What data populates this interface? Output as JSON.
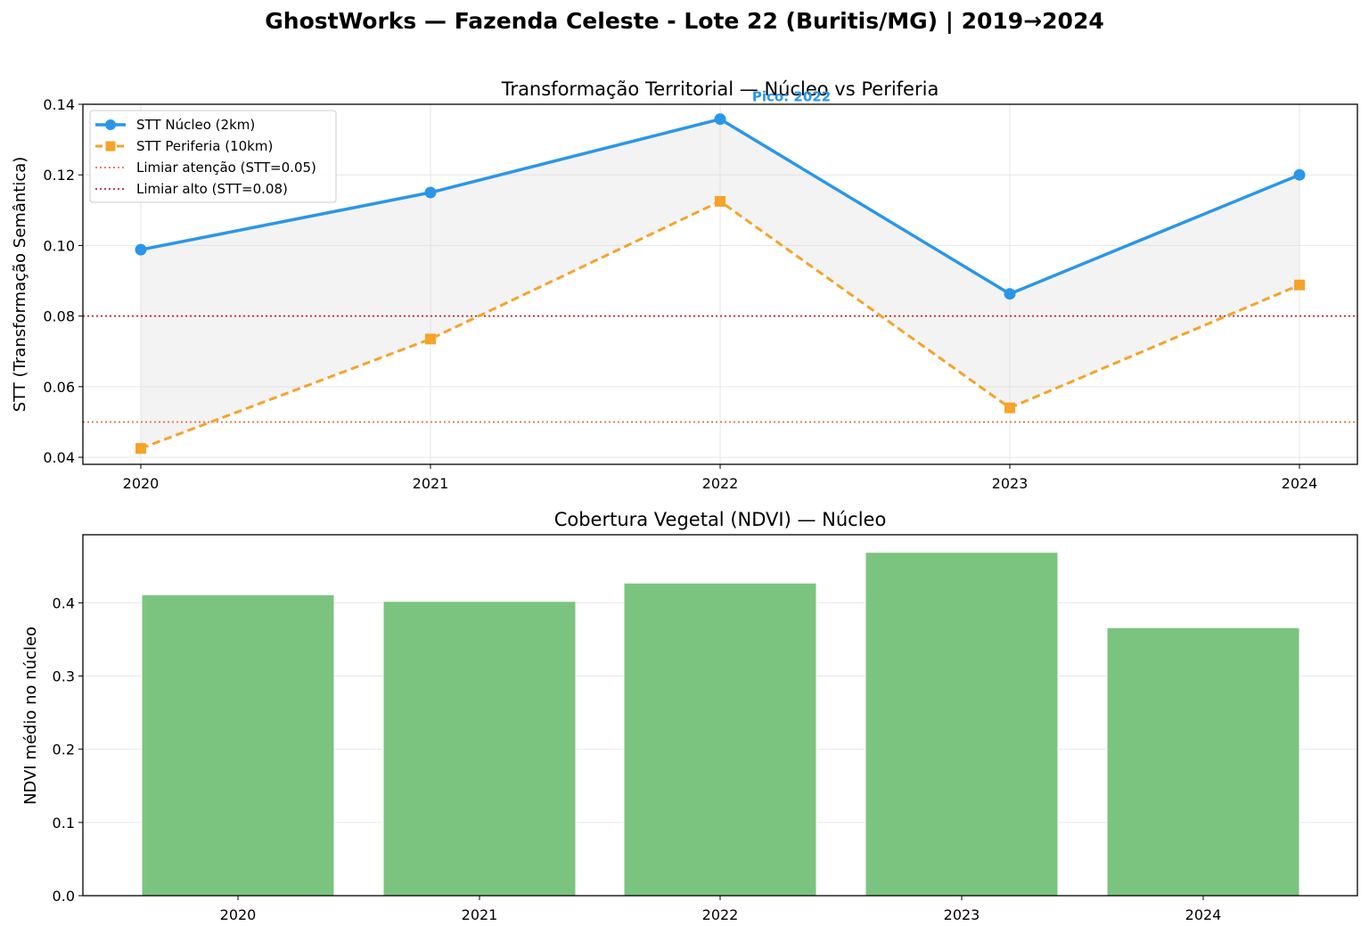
{
  "figure": {
    "suptitle": "GhostWorks — Fazenda Celeste - Lote 22 (Buritis/MG) | 2019→2024"
  },
  "chart_data": [
    {
      "type": "line",
      "title": "Transformação Territorial — Núcleo vs Periferia",
      "xlabel": "",
      "ylabel": "STT (Transformação Semântica)",
      "x": [
        "2020",
        "2021",
        "2022",
        "2023",
        "2024"
      ],
      "ylim": [
        0.038,
        0.14
      ],
      "yticks": [
        "0.04",
        "0.06",
        "0.08",
        "0.10",
        "0.12",
        "0.14"
      ],
      "grid": true,
      "legend_loc": "upper left",
      "series": [
        {
          "name": "STT Núcleo (2km)",
          "values": [
            0.0988,
            0.115,
            0.1358,
            0.0863,
            0.12
          ],
          "color": "#2b96e8",
          "style": "solid",
          "marker": "circle"
        },
        {
          "name": "STT Periferia (10km)",
          "values": [
            0.0425,
            0.0735,
            0.1125,
            0.054,
            0.0888
          ],
          "color": "#f5a32b",
          "style": "dashed",
          "marker": "square"
        }
      ],
      "thresholds": [
        {
          "name": "Limiar atenção (STT=0.05)",
          "value": 0.05,
          "color": "#ef6a4a"
        },
        {
          "name": "Limiar alto (STT=0.08)",
          "value": 0.08,
          "color": "#c0262c"
        }
      ],
      "fill_between": {
        "color": "#d8d8d8"
      },
      "annotation": {
        "text": "Pico: 2022",
        "x": "2022",
        "color": "#2b96e8"
      }
    },
    {
      "type": "bar",
      "title": "Cobertura Vegetal (NDVI) — Núcleo",
      "xlabel": "",
      "ylabel": "NDVI médio no núcleo",
      "categories": [
        "2020",
        "2021",
        "2022",
        "2023",
        "2024"
      ],
      "values": [
        0.411,
        0.402,
        0.427,
        0.469,
        0.366
      ],
      "ylim": [
        0,
        0.493
      ],
      "yticks": [
        "0.0",
        "0.1",
        "0.2",
        "0.3",
        "0.4"
      ],
      "grid": true,
      "color": "#7bc47f"
    }
  ]
}
